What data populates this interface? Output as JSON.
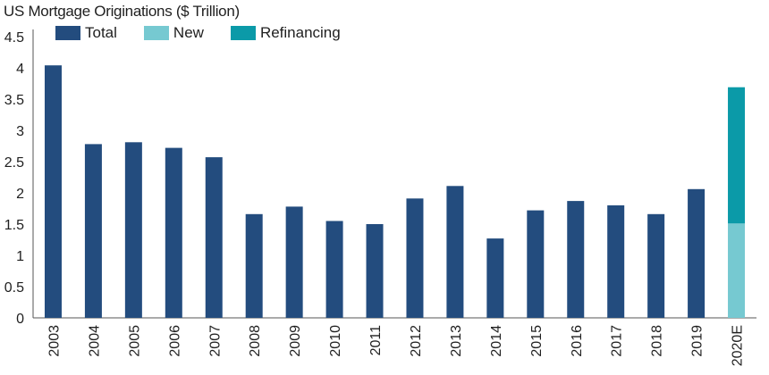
{
  "chart_data": {
    "type": "bar",
    "title": "US Mortgage Originations ($ Trillion)",
    "xlabel": "",
    "ylabel": "",
    "ylim": [
      0,
      4.5
    ],
    "yticks": [
      0,
      0.5,
      1,
      1.5,
      2,
      2.5,
      3,
      3.5,
      4,
      4.5
    ],
    "grid": false,
    "legend_position": "top-left",
    "categories": [
      "2003",
      "2004",
      "2005",
      "2006",
      "2007",
      "2008",
      "2009",
      "2010",
      "2011",
      "2012",
      "2013",
      "2014",
      "2015",
      "2016",
      "2017",
      "2018",
      "2019",
      "2020E"
    ],
    "series": [
      {
        "name": "Total",
        "color": "#234c7e",
        "values": [
          4.04,
          2.78,
          2.81,
          2.72,
          2.57,
          1.66,
          1.78,
          1.55,
          1.5,
          1.91,
          2.11,
          1.27,
          1.72,
          1.87,
          1.8,
          1.66,
          2.06,
          null
        ]
      },
      {
        "name": "New",
        "color": "#76c9d1",
        "values": [
          null,
          null,
          null,
          null,
          null,
          null,
          null,
          null,
          null,
          null,
          null,
          null,
          null,
          null,
          null,
          null,
          null,
          1.51
        ]
      },
      {
        "name": "Refinancing",
        "color": "#0b9aa8",
        "values": [
          null,
          null,
          null,
          null,
          null,
          null,
          null,
          null,
          null,
          null,
          null,
          null,
          null,
          null,
          null,
          null,
          null,
          2.18
        ]
      }
    ]
  }
}
